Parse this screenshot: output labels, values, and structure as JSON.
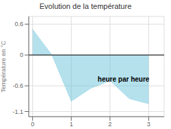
{
  "chart_data": {
    "type": "area",
    "title": "Evolution de la température",
    "ylabel": "Température en °C",
    "annotations": [
      "heure par heure"
    ],
    "x": [
      0,
      0.5,
      1,
      1.5,
      2,
      2.5,
      3
    ],
    "values": [
      0.5,
      0.0,
      -0.9,
      -0.65,
      -0.5,
      -0.85,
      -0.95
    ],
    "xlim": [
      -0.1,
      3.4
    ],
    "ylim": [
      -1.2,
      0.75
    ],
    "xticks": [
      0,
      1,
      2,
      3
    ],
    "yticks": [
      -1.1,
      -0.6,
      0.0,
      0.6
    ],
    "color": "#5bbcd8",
    "line_style": "dotted",
    "grid": true
  }
}
